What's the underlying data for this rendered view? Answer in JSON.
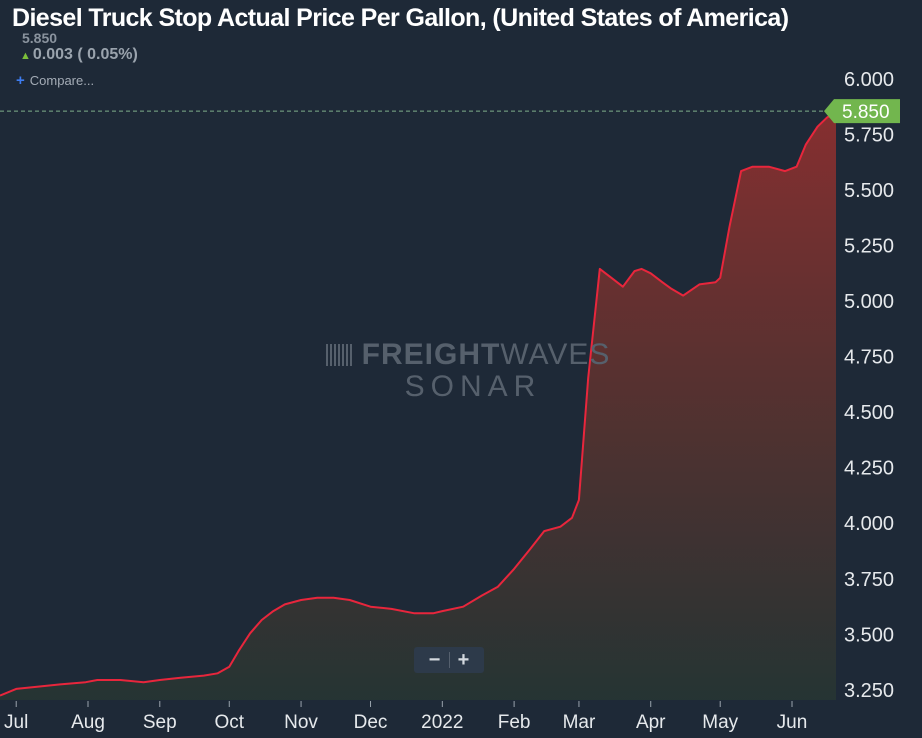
{
  "header": {
    "title": "Diesel Truck Stop Actual Price Per Gallon, (United States of America)",
    "last_value": "5.850",
    "change_arrow": "▲",
    "change_text": "0.003 ( 0.05%)",
    "compare_icon": "+",
    "compare_label": "Compare..."
  },
  "watermark": {
    "brand_bold": "FREIGHT",
    "brand_thin": "WAVES",
    "product": "SONAR"
  },
  "zoom": {
    "minus": "−",
    "plus": "+"
  },
  "colors": {
    "background": "#1e2937",
    "line": "#e8263c",
    "fill_top": "#8c2f2f",
    "fill_bottom": "#263533",
    "current_badge": "#72b64e",
    "current_dash": "#7fae8a",
    "axis_text": "#e6e9ec"
  },
  "chart_data": {
    "type": "area",
    "title": "Diesel Truck Stop Actual Price Per Gallon, (United States of America)",
    "ylim": [
      3.2,
      6.08
    ],
    "yticks": [
      3.25,
      3.5,
      3.75,
      4.0,
      4.25,
      4.5,
      4.75,
      5.0,
      5.25,
      5.5,
      5.75,
      6.0
    ],
    "ytick_labels": [
      "3.250",
      "3.500",
      "3.750",
      "4.000",
      "4.250",
      "4.500",
      "4.750",
      "5.000",
      "5.250",
      "5.500",
      "5.750",
      "6.000"
    ],
    "xlim": [
      "2021-06-24",
      "2022-06-20"
    ],
    "xticks": [
      "2021-07-01",
      "2021-08-01",
      "2021-09-01",
      "2021-10-01",
      "2021-11-01",
      "2021-12-01",
      "2022-01-01",
      "2022-02-01",
      "2022-03-01",
      "2022-04-01",
      "2022-05-01",
      "2022-06-01"
    ],
    "xtick_labels": [
      "Jul",
      "Aug",
      "Sep",
      "Oct",
      "Nov",
      "Dec",
      "2022",
      "Feb",
      "Mar",
      "Apr",
      "May",
      "Jun"
    ],
    "current_value": 5.85,
    "current_label": "5.850",
    "grid": false,
    "series": [
      {
        "x": [
          "2021-06-24",
          "2021-07-01",
          "2021-07-10",
          "2021-07-20",
          "2021-07-31",
          "2021-08-05",
          "2021-08-15",
          "2021-08-25",
          "2021-09-01",
          "2021-09-10",
          "2021-09-20",
          "2021-09-26",
          "2021-10-01",
          "2021-10-05",
          "2021-10-10",
          "2021-10-15",
          "2021-10-20",
          "2021-10-25",
          "2021-11-01",
          "2021-11-08",
          "2021-11-15",
          "2021-11-22",
          "2021-12-01",
          "2021-12-10",
          "2021-12-20",
          "2021-12-28",
          "2022-01-01",
          "2022-01-10",
          "2022-01-18",
          "2022-01-25",
          "2022-02-01",
          "2022-02-08",
          "2022-02-14",
          "2022-02-21",
          "2022-02-26",
          "2022-03-01",
          "2022-03-05",
          "2022-03-10",
          "2022-03-15",
          "2022-03-20",
          "2022-03-25",
          "2022-03-28",
          "2022-04-01",
          "2022-04-06",
          "2022-04-10",
          "2022-04-15",
          "2022-04-22",
          "2022-04-29",
          "2022-05-01",
          "2022-05-05",
          "2022-05-10",
          "2022-05-15",
          "2022-05-22",
          "2022-05-29",
          "2022-06-03",
          "2022-06-07",
          "2022-06-12",
          "2022-06-16",
          "2022-06-20"
        ],
        "values": [
          3.22,
          3.25,
          3.26,
          3.27,
          3.28,
          3.29,
          3.29,
          3.28,
          3.29,
          3.3,
          3.31,
          3.32,
          3.35,
          3.42,
          3.5,
          3.56,
          3.6,
          3.63,
          3.65,
          3.66,
          3.66,
          3.65,
          3.62,
          3.61,
          3.59,
          3.59,
          3.6,
          3.62,
          3.67,
          3.71,
          3.79,
          3.88,
          3.96,
          3.98,
          4.02,
          4.1,
          4.65,
          5.14,
          5.1,
          5.06,
          5.13,
          5.14,
          5.12,
          5.08,
          5.05,
          5.02,
          5.07,
          5.08,
          5.1,
          5.33,
          5.58,
          5.6,
          5.6,
          5.58,
          5.6,
          5.7,
          5.78,
          5.82,
          5.85
        ]
      }
    ]
  }
}
